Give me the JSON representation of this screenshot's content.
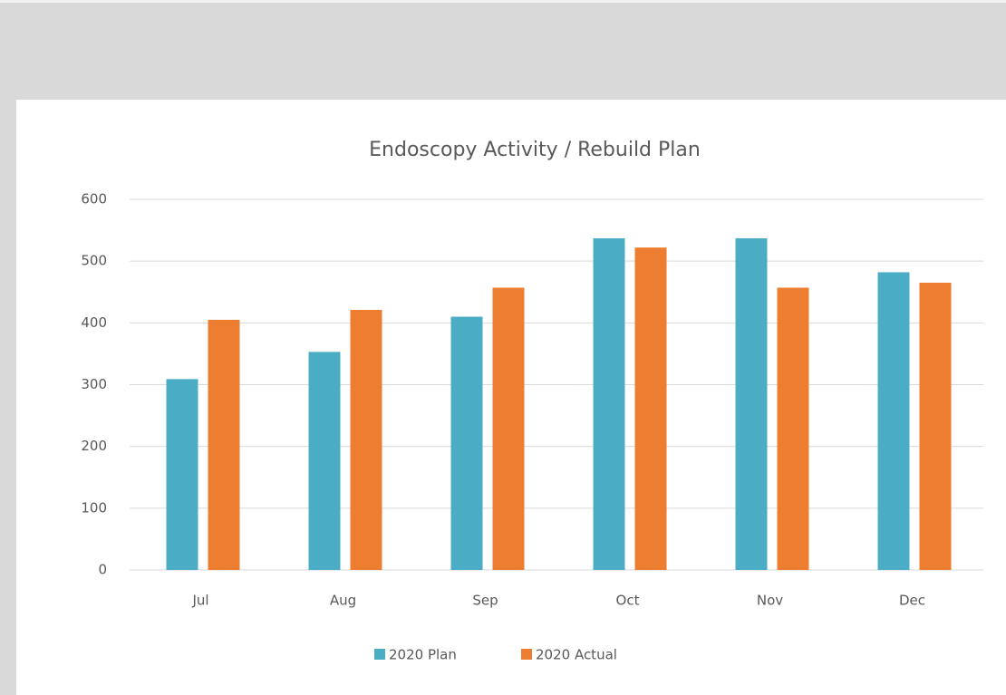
{
  "chart_data": {
    "type": "bar",
    "title": "Endoscopy Activity / Rebuild Plan",
    "categories": [
      "Jul",
      "Aug",
      "Sep",
      "Oct",
      "Nov",
      "Dec"
    ],
    "series": [
      {
        "name": "2020 Plan",
        "color": "#4bacc6",
        "values": [
          309,
          353,
          410,
          537,
          537,
          482
        ]
      },
      {
        "name": "2020 Actual",
        "color": "#ed7d31",
        "values": [
          405,
          421,
          457,
          522,
          457,
          465
        ]
      }
    ],
    "ylim": [
      0,
      600
    ],
    "yticks": [
      0,
      100,
      200,
      300,
      400,
      500,
      600
    ],
    "grid": true,
    "legend": "bottom"
  }
}
